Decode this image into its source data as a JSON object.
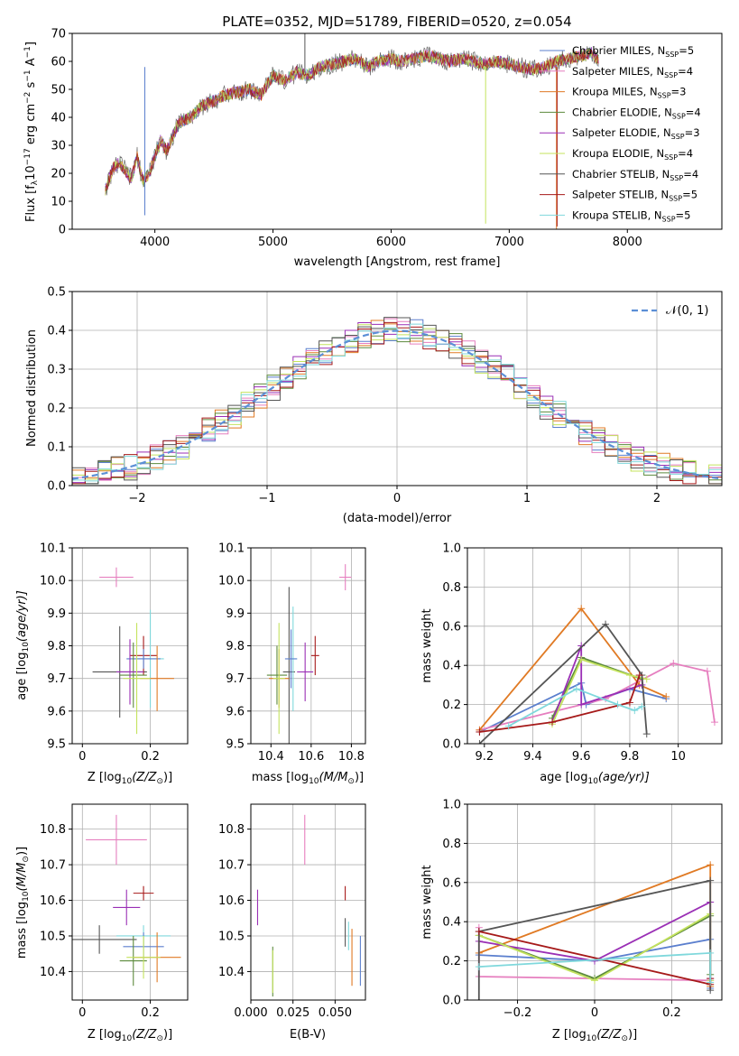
{
  "figure_title": "PLATE=0352, MJD=51789, FIBERID=0520, z=0.054",
  "legend_labels": [
    [
      "Chabrier MILES, N",
      "SSP",
      "=5"
    ],
    [
      "Salpeter MILES, N",
      "SSP",
      "=4"
    ],
    [
      "Kroupa MILES, N",
      "SSP",
      "=3"
    ],
    [
      "Chabrier ELODIE, N",
      "SSP",
      "=4"
    ],
    [
      "Salpeter ELODIE, N",
      "SSP",
      "=3"
    ],
    [
      "Kroupa ELODIE, N",
      "SSP",
      "=4"
    ],
    [
      "Chabrier STELIB, N",
      "SSP",
      "=4"
    ],
    [
      "Salpeter STELIB, N",
      "SSP",
      "=5"
    ],
    [
      "Kroupa STELIB, N",
      "SSP",
      "=5"
    ]
  ],
  "colors": [
    "#5b7fce",
    "#e67fbf",
    "#e07a24",
    "#5c8a3c",
    "#9a2fb5",
    "#c4e35e",
    "#555555",
    "#a61a1a",
    "#7fd8dc"
  ],
  "chart_data": [
    {
      "id": "spectrum",
      "type": "line",
      "xlabel": "wavelength [Angstrom, rest frame]",
      "ylabel": "Flux [fλ10⁻¹⁷ erg cm⁻² s⁻¹ A⁻¹]",
      "xlim": [
        3300,
        8800
      ],
      "ylim": [
        0,
        70
      ],
      "xticks": [
        4000,
        5000,
        6000,
        7000,
        8000
      ],
      "yticks": [
        0,
        10,
        20,
        30,
        40,
        50,
        60,
        70
      ],
      "continuum": [
        [
          3580,
          14
        ],
        [
          3650,
          22
        ],
        [
          3700,
          24
        ],
        [
          3800,
          18
        ],
        [
          3850,
          26
        ],
        [
          3900,
          17
        ],
        [
          3950,
          20
        ],
        [
          4000,
          26
        ],
        [
          4050,
          32
        ],
        [
          4100,
          28
        ],
        [
          4200,
          38
        ],
        [
          4300,
          40
        ],
        [
          4400,
          44
        ],
        [
          4500,
          46
        ],
        [
          4600,
          48
        ],
        [
          4700,
          49
        ],
        [
          4800,
          50
        ],
        [
          4900,
          48
        ],
        [
          5000,
          55
        ],
        [
          5100,
          53
        ],
        [
          5200,
          56
        ],
        [
          5300,
          55
        ],
        [
          5400,
          58
        ],
        [
          5500,
          59
        ],
        [
          5600,
          60
        ],
        [
          5700,
          61
        ],
        [
          5800,
          58
        ],
        [
          5900,
          60
        ],
        [
          6000,
          61
        ],
        [
          6100,
          60
        ],
        [
          6200,
          61
        ],
        [
          6300,
          62
        ],
        [
          6400,
          61
        ],
        [
          6500,
          60
        ],
        [
          6600,
          61
        ],
        [
          6700,
          60
        ],
        [
          6800,
          59
        ],
        [
          6900,
          60
        ],
        [
          7000,
          59
        ],
        [
          7100,
          58
        ],
        [
          7200,
          57
        ],
        [
          7300,
          58
        ],
        [
          7400,
          60
        ],
        [
          7500,
          61
        ],
        [
          7600,
          62
        ],
        [
          7700,
          63
        ],
        [
          7760,
          60
        ]
      ]
    },
    {
      "id": "residuals",
      "type": "histogram",
      "xlabel": "(data-model)/error",
      "ylabel": "Normed distribution",
      "xlim": [
        -2.5,
        2.5
      ],
      "ylim": [
        0,
        0.5
      ],
      "xticks": [
        -2,
        -1,
        0,
        1,
        2
      ],
      "yticks": [
        0.0,
        0.1,
        0.2,
        0.3,
        0.4,
        0.5
      ],
      "legend": "𝒩(0, 1)",
      "bin_width": 0.1
    },
    {
      "id": "age_vs_Z",
      "type": "errorbar",
      "xlabel_main": "Z [log",
      "xlabel_sub": "10",
      "xlabel_rest": "(Z/Z",
      "xlabel_end": ")]",
      "ylabel_main": "age  [log",
      "ylabel_sub": "10",
      "ylabel_rest": "(age/yr)]",
      "xlim": [
        -0.03,
        0.31
      ],
      "ylim": [
        9.5,
        10.1
      ],
      "xticks": [
        0.0,
        0.2
      ],
      "yticks": [
        9.5,
        9.6,
        9.7,
        9.8,
        9.9,
        10.0,
        10.1
      ],
      "points": [
        [
          0.18,
          9.76,
          0.05,
          0.03
        ],
        [
          0.1,
          10.01,
          0.05,
          0.03
        ],
        [
          0.22,
          9.7,
          0.05,
          0.1
        ],
        [
          0.15,
          9.71,
          0.04,
          0.1
        ],
        [
          0.14,
          9.72,
          0.04,
          0.1
        ],
        [
          0.16,
          9.7,
          0.04,
          0.17
        ],
        [
          0.11,
          9.72,
          0.08,
          0.14
        ],
        [
          0.18,
          9.77,
          0.04,
          0.06
        ],
        [
          0.2,
          9.76,
          0.04,
          0.15
        ]
      ]
    },
    {
      "id": "age_vs_mass",
      "type": "errorbar",
      "xlabel_main": "mass [log",
      "xlabel_sub": "10",
      "xlabel_rest": "(M/M",
      "xlabel_end": ")]",
      "xlim": [
        10.3,
        10.87
      ],
      "ylim": [
        9.5,
        10.1
      ],
      "xticks": [
        10.4,
        10.6,
        10.8
      ],
      "yticks": [
        9.5,
        9.6,
        9.7,
        9.8,
        9.9,
        10.0,
        10.1
      ],
      "points": [
        [
          10.5,
          9.76,
          0.03,
          0.09
        ],
        [
          10.77,
          10.01,
          0.03,
          0.04
        ],
        [
          10.44,
          9.7,
          0.05,
          0.09
        ],
        [
          10.43,
          9.71,
          0.05,
          0.09
        ],
        [
          10.57,
          9.72,
          0.04,
          0.09
        ],
        [
          10.44,
          9.7,
          0.03,
          0.17
        ],
        [
          10.49,
          9.72,
          0.03,
          0.26
        ],
        [
          10.62,
          9.77,
          0.02,
          0.06
        ],
        [
          10.51,
          9.76,
          0.02,
          0.16
        ]
      ]
    },
    {
      "id": "mass_weight_vs_age",
      "type": "line",
      "xlabel_main": "age  [log",
      "xlabel_sub": "10",
      "xlabel_rest": "(age/yr)]",
      "ylabel": "mass weight",
      "xlim": [
        9.13,
        10.18
      ],
      "ylim": [
        0,
        1.0
      ],
      "xticks": [
        9.2,
        9.4,
        9.6,
        9.8,
        10.0
      ],
      "yticks": [
        0.0,
        0.2,
        0.4,
        0.6,
        0.8,
        1.0
      ],
      "series": [
        [
          [
            9.18,
            0.06
          ],
          [
            9.6,
            0.31
          ],
          [
            9.62,
            0.2
          ],
          [
            9.8,
            0.28
          ],
          [
            9.95,
            0.23
          ]
        ],
        [
          [
            9.18,
            0.07
          ],
          [
            9.7,
            0.23
          ],
          [
            9.98,
            0.41
          ],
          [
            10.12,
            0.37
          ],
          [
            10.15,
            0.11
          ]
        ],
        [
          [
            9.18,
            0.07
          ],
          [
            9.6,
            0.69
          ],
          [
            9.84,
            0.3
          ],
          [
            9.95,
            0.24
          ]
        ],
        [
          [
            9.48,
            0.13
          ],
          [
            9.6,
            0.44
          ],
          [
            9.85,
            0.33
          ]
        ],
        [
          [
            9.48,
            0.11
          ],
          [
            9.6,
            0.5
          ],
          [
            9.6,
            0.2
          ],
          [
            9.85,
            0.3
          ]
        ],
        [
          [
            9.48,
            0.1
          ],
          [
            9.6,
            0.43
          ],
          [
            9.8,
            0.35
          ],
          [
            9.87,
            0.33
          ]
        ],
        [
          [
            9.18,
            0.0
          ],
          [
            9.7,
            0.61
          ],
          [
            9.85,
            0.35
          ],
          [
            9.87,
            0.05
          ]
        ],
        [
          [
            9.18,
            0.06
          ],
          [
            9.48,
            0.11
          ],
          [
            9.8,
            0.21
          ],
          [
            9.84,
            0.35
          ]
        ],
        [
          [
            9.3,
            0.09
          ],
          [
            9.58,
            0.28
          ],
          [
            9.75,
            0.2
          ],
          [
            9.82,
            0.17
          ],
          [
            9.85,
            0.19
          ]
        ]
      ]
    },
    {
      "id": "mass_vs_Z",
      "type": "errorbar",
      "xlabel_main": "Z [log",
      "xlabel_sub": "10",
      "xlabel_rest": "(Z/Z",
      "xlabel_end": ")]",
      "ylabel_main": "mass [log",
      "ylabel_sub": "10",
      "ylabel_rest": "(M/M",
      "ylabel_end": ")]",
      "xlim": [
        -0.03,
        0.31
      ],
      "ylim": [
        10.32,
        10.87
      ],
      "xticks": [
        0.0,
        0.2
      ],
      "yticks": [
        10.4,
        10.5,
        10.6,
        10.7,
        10.8
      ],
      "points": [
        [
          0.18,
          10.47,
          0.06,
          0.04
        ],
        [
          0.1,
          10.77,
          0.09,
          0.07
        ],
        [
          0.22,
          10.44,
          0.07,
          0.07
        ],
        [
          0.15,
          10.43,
          0.04,
          0.07
        ],
        [
          0.13,
          10.58,
          0.04,
          0.05
        ],
        [
          0.18,
          10.44,
          0.05,
          0.06
        ],
        [
          0.05,
          10.49,
          0.11,
          0.04
        ],
        [
          0.18,
          10.62,
          0.03,
          0.02
        ],
        [
          0.18,
          10.5,
          0.08,
          0.03
        ]
      ]
    },
    {
      "id": "mass_vs_ebv",
      "type": "errorbar",
      "xlabel": "E(B-V)",
      "xlim": [
        0.0,
        0.068
      ],
      "ylim": [
        10.32,
        10.87
      ],
      "xticks": [
        0.0,
        0.025,
        0.05
      ],
      "xticklabels": [
        "0.000",
        "0.025",
        "0.050"
      ],
      "yticks": [
        10.4,
        10.5,
        10.6,
        10.7,
        10.8
      ],
      "points": [
        [
          0.065,
          10.43,
          0,
          0.07
        ],
        [
          0.032,
          10.77,
          0,
          0.07
        ],
        [
          0.06,
          10.44,
          0,
          0.08
        ],
        [
          0.013,
          10.4,
          0,
          0.07
        ],
        [
          0.004,
          10.58,
          0,
          0.05
        ],
        [
          0.013,
          10.4,
          0,
          0.06
        ],
        [
          0.056,
          10.51,
          0,
          0.04
        ],
        [
          0.056,
          10.62,
          0,
          0.02
        ],
        [
          0.058,
          10.5,
          0,
          0.04
        ]
      ]
    },
    {
      "id": "mass_weight_vs_Z",
      "type": "line",
      "xlabel_main": "Z [log",
      "xlabel_sub": "10",
      "xlabel_rest": "(Z/Z",
      "xlabel_end": ")]",
      "ylabel": "mass weight",
      "xlim": [
        -0.33,
        0.33
      ],
      "ylim": [
        0,
        1.0
      ],
      "xticks": [
        -0.2,
        0.0,
        0.2
      ],
      "yticks": [
        0.0,
        0.2,
        0.4,
        0.6,
        0.8,
        1.0
      ],
      "series": [
        [
          [
            -0.3,
            0.23
          ],
          [
            0.0,
            0.2
          ],
          [
            0.3,
            0.31
          ],
          [
            0.3,
            0.06
          ]
        ],
        [
          [
            -0.3,
            0.37
          ],
          [
            -0.3,
            0.12
          ],
          [
            0.3,
            0.1
          ]
        ],
        [
          [
            -0.3,
            0.24
          ],
          [
            0.3,
            0.69
          ],
          [
            0.3,
            0.07
          ]
        ],
        [
          [
            -0.3,
            0.33
          ],
          [
            0.0,
            0.11
          ],
          [
            0.3,
            0.43
          ],
          [
            0.3,
            0.13
          ]
        ],
        [
          [
            -0.3,
            0.3
          ],
          [
            0.0,
            0.2
          ],
          [
            0.3,
            0.5
          ],
          [
            0.3,
            0.11
          ]
        ],
        [
          [
            -0.3,
            0.33
          ],
          [
            0.0,
            0.1
          ],
          [
            0.3,
            0.44
          ],
          [
            0.3,
            0.1
          ]
        ],
        [
          [
            -0.3,
            0.0
          ],
          [
            -0.3,
            0.35
          ],
          [
            0.3,
            0.61
          ],
          [
            0.3,
            0.05
          ]
        ],
        [
          [
            -0.3,
            0.35
          ],
          [
            0.3,
            0.08
          ],
          [
            0.3,
            0.11
          ]
        ],
        [
          [
            -0.3,
            0.17
          ],
          [
            0.3,
            0.24
          ],
          [
            0.3,
            0.09
          ]
        ]
      ]
    }
  ]
}
